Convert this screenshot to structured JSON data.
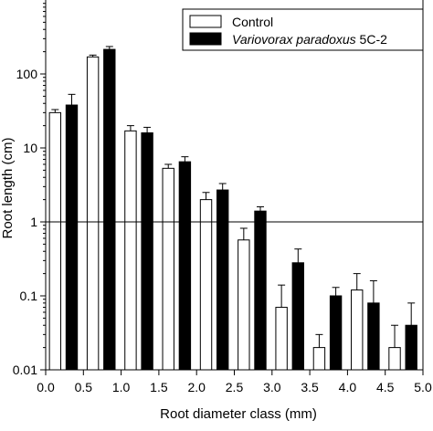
{
  "chart_data": {
    "type": "bar",
    "title": "",
    "xlabel": "Root diameter class (mm)",
    "ylabel": "Root length (cm)",
    "yscale": "log",
    "ylim": [
      0.01,
      1000
    ],
    "xlim": [
      0.0,
      5.0
    ],
    "x_ticks": [
      "0.0",
      "0.5",
      "1.0",
      "1.5",
      "2.0",
      "2.5",
      "3.0",
      "3.5",
      "4.0",
      "4.5",
      "5.0"
    ],
    "y_ticks": [
      "0.01",
      "0.1",
      "1",
      "10",
      "100"
    ],
    "y_tick_values": [
      0.01,
      0.1,
      1,
      10,
      100
    ],
    "reference_line": 1,
    "categories": [
      "0.0-0.5",
      "0.5-1.0",
      "1.0-1.5",
      "1.5-2.0",
      "2.0-2.5",
      "2.5-3.0",
      "3.0-3.5",
      "3.5-4.0",
      "4.0-4.5",
      "4.5-5.0"
    ],
    "series": [
      {
        "name": "Control",
        "color": "#ffffff",
        "values": [
          30,
          170,
          17,
          5.3,
          2.0,
          0.57,
          0.07,
          0.02,
          0.12,
          0.02
        ],
        "error_upper": [
          33,
          180,
          20,
          6.0,
          2.5,
          0.82,
          0.14,
          0.03,
          0.2,
          0.04
        ]
      },
      {
        "name": "Variovorax paradoxus 5C-2",
        "name_parts": [
          "Variovorax paradoxus",
          " 5C-2"
        ],
        "color": "#000000",
        "values": [
          38,
          215,
          16,
          6.5,
          2.7,
          1.4,
          0.28,
          0.1,
          0.08,
          0.04
        ],
        "error_upper": [
          53,
          235,
          19,
          7.6,
          3.3,
          1.6,
          0.43,
          0.13,
          0.16,
          0.08
        ]
      }
    ],
    "legend_position": "top-right",
    "grid": false
  }
}
